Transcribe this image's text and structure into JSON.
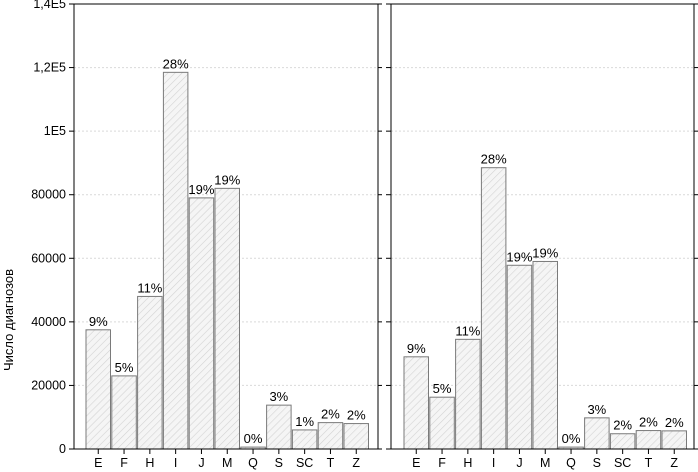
{
  "chart_data": [
    {
      "type": "bar",
      "title": "",
      "xlabel": "",
      "ylabel": "Число диагнозов",
      "ylim": [
        0,
        140000
      ],
      "yticks": [
        0,
        20000,
        40000,
        60000,
        80000,
        100000,
        120000,
        140000
      ],
      "ytick_labels": [
        "0",
        "20000",
        "40000",
        "60000",
        "80000",
        "1E5",
        "1,2E5",
        "1,4E5"
      ],
      "grid": true,
      "categories": [
        "E",
        "F",
        "H",
        "I",
        "J",
        "M",
        "Q",
        "S",
        "SC",
        "T",
        "Z"
      ],
      "values": [
        37500,
        23000,
        48000,
        118500,
        79000,
        82000,
        600,
        13800,
        6000,
        8300,
        8000
      ],
      "data_labels": [
        "9%",
        "5%",
        "11%",
        "28%",
        "19%",
        "19%",
        "0%",
        "3%",
        "1%",
        "2%",
        "2%"
      ]
    },
    {
      "type": "bar",
      "title": "",
      "xlabel": "",
      "ylabel": "",
      "ylim": [
        0,
        140000
      ],
      "yticks": [
        0,
        20000,
        40000,
        60000,
        80000,
        100000,
        120000,
        140000
      ],
      "ytick_labels": [
        "",
        "",
        "",
        "",
        "",
        "",
        "",
        ""
      ],
      "grid": true,
      "categories": [
        "E",
        "F",
        "H",
        "I",
        "J",
        "M",
        "Q",
        "S",
        "SC",
        "T",
        "Z"
      ],
      "values": [
        29000,
        16300,
        34500,
        88500,
        57800,
        59000,
        600,
        9800,
        4800,
        5800,
        5700
      ],
      "data_labels": [
        "9%",
        "5%",
        "11%",
        "28%",
        "19%",
        "19%",
        "0%",
        "3%",
        "2%",
        "2%",
        "2%"
      ]
    }
  ],
  "colors": {
    "bar_fill": "#f4f4f4",
    "bar_stroke": "#7a7a7a",
    "hatch": "#d2d2d2",
    "grid": "#d9d9d9",
    "frame": "#000000"
  }
}
